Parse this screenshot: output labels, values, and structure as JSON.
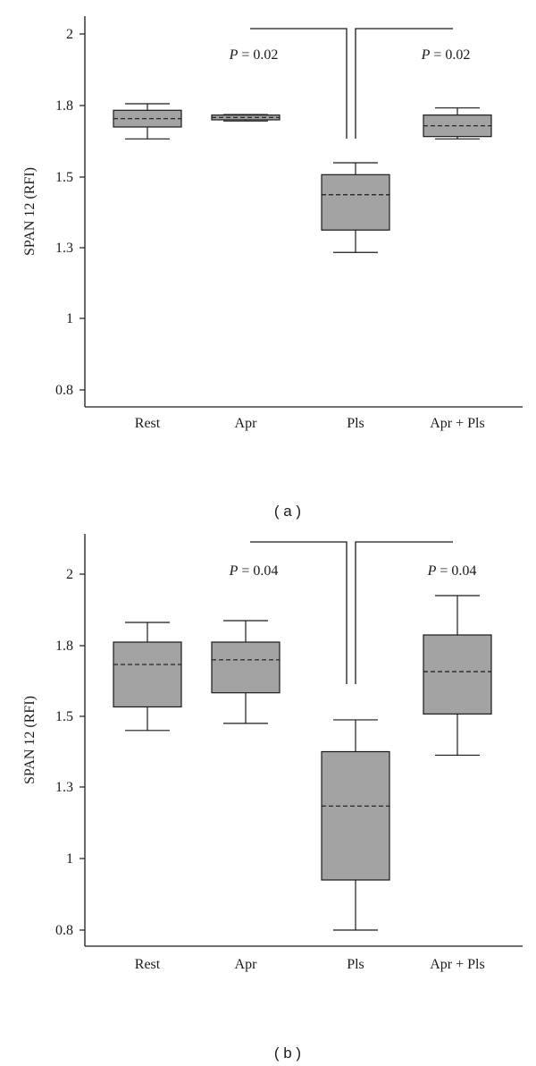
{
  "chart_data": [
    {
      "type": "box",
      "panel_label": "( a )",
      "ylabel": "SPAN 12 (RFI)",
      "categories": [
        "Rest",
        "Apr",
        "Pls",
        "Apr + Pls"
      ],
      "yticks": [
        {
          "label": "0.8",
          "value": 0.8
        },
        {
          "label": "1",
          "value": 1.0
        },
        {
          "label": "1.3",
          "value": 1.3
        },
        {
          "label": "1.5",
          "value": 1.5
        },
        {
          "label": "1.8",
          "value": 1.8
        },
        {
          "label": "2",
          "value": 2.0
        }
      ],
      "ylim": [
        0.72,
        2.08
      ],
      "boxes": [
        {
          "category": "Rest",
          "whisker_low": 1.66,
          "q1": 1.71,
          "median": 1.745,
          "q3": 1.78,
          "whisker_high": 1.805
        },
        {
          "category": "Apr",
          "whisker_low": 1.735,
          "q1": 1.74,
          "median": 1.75,
          "q3": 1.76,
          "whisker_high": 1.762
        },
        {
          "category": "Pls",
          "whisker_low": 1.28,
          "q1": 1.35,
          "median": 1.45,
          "q3": 1.51,
          "whisker_high": 1.56
        },
        {
          "category": "Apr + Pls",
          "whisker_low": 1.66,
          "q1": 1.67,
          "median": 1.715,
          "q3": 1.76,
          "whisker_high": 1.79
        }
      ],
      "annotations": [
        {
          "text": "P = 0.02",
          "p_label": "P",
          "p_value": "= 0.02",
          "compare": [
            "Apr",
            "Pls"
          ]
        },
        {
          "text": "P = 0.02",
          "p_label": "P",
          "p_value": "= 0.02",
          "compare": [
            "Pls",
            "Apr + Pls"
          ]
        }
      ]
    },
    {
      "type": "box",
      "panel_label": "( b )",
      "ylabel": "SPAN 12 (RFI)",
      "categories": [
        "Rest",
        "Apr",
        "Pls",
        "Apr + Pls"
      ],
      "yticks": [
        {
          "label": "0.8",
          "value": 0.8
        },
        {
          "label": "1",
          "value": 1.0
        },
        {
          "label": "1.3",
          "value": 1.3
        },
        {
          "label": "1.5",
          "value": 1.5
        },
        {
          "label": "1.8",
          "value": 1.8
        },
        {
          "label": "2",
          "value": 2.0
        }
      ],
      "ylim": [
        0.72,
        2.08
      ],
      "boxes": [
        {
          "category": "Rest",
          "whisker_low": 1.46,
          "q1": 1.54,
          "median": 1.72,
          "q3": 1.81,
          "whisker_high": 1.865
        },
        {
          "category": "Apr",
          "whisker_low": 1.48,
          "q1": 1.6,
          "median": 1.74,
          "q3": 1.81,
          "whisker_high": 1.87
        },
        {
          "category": "Pls",
          "whisker_low": 0.8,
          "q1": 0.94,
          "median": 1.22,
          "q3": 1.4,
          "whisker_high": 1.49
        },
        {
          "category": "Apr + Pls",
          "whisker_low": 1.39,
          "q1": 1.51,
          "median": 1.69,
          "q3": 1.83,
          "whisker_high": 1.94
        }
      ],
      "annotations": [
        {
          "text": "P = 0.04",
          "p_label": "P",
          "p_value": "= 0.04",
          "compare": [
            "Apr",
            "Pls"
          ]
        },
        {
          "text": "P = 0.04",
          "p_label": "P",
          "p_value": "= 0.04",
          "compare": [
            "Pls",
            "Apr + Pls"
          ]
        }
      ]
    }
  ],
  "colors": {
    "box_fill": "#a3a3a3",
    "stroke": "#1a1a1a",
    "background": "#ffffff"
  }
}
